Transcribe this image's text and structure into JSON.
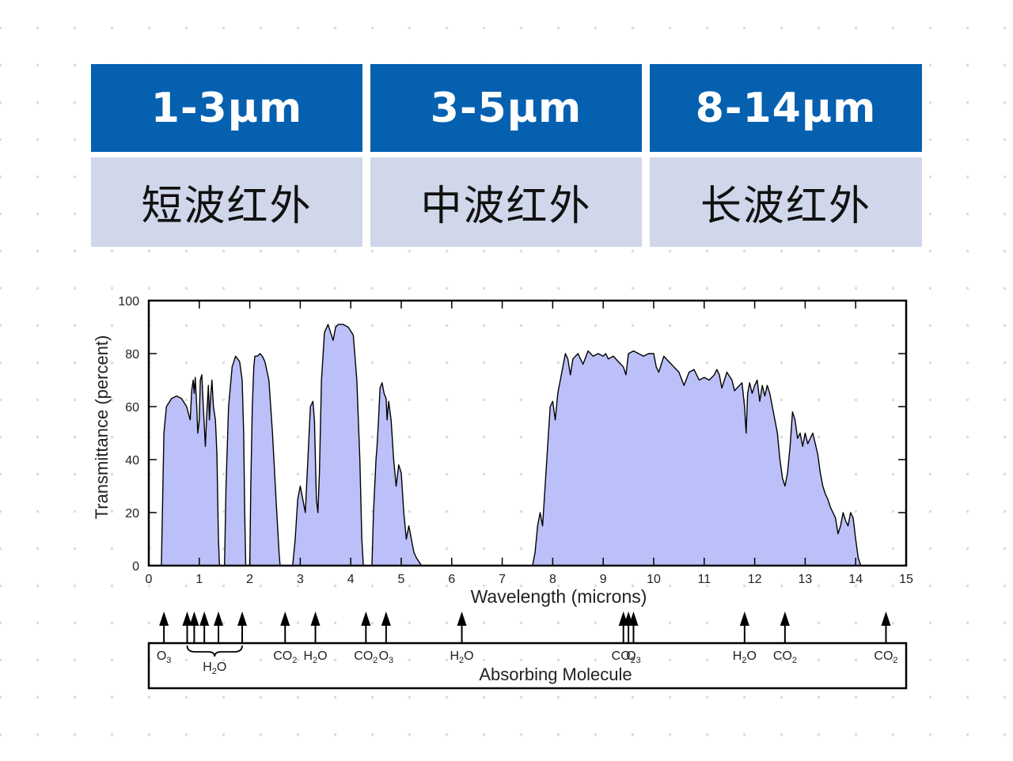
{
  "bands": [
    {
      "range": "1-3μm",
      "name": "短波红外"
    },
    {
      "range": "3-5μm",
      "name": "中波红外"
    },
    {
      "range": "8-14μm",
      "name": "长波红外"
    }
  ],
  "colors": {
    "header_blue": "#0560b0",
    "header_light": "#d0d7ea",
    "transmission_fill": "#bcc0f8",
    "line": "#000000"
  },
  "chart_data": {
    "type": "area",
    "xlabel": "Wavelength (microns)",
    "ylabel": "Transmittance (percent)",
    "xlim": [
      0,
      15
    ],
    "ylim": [
      0,
      100
    ],
    "xticks": [
      "0",
      "1",
      "2",
      "3",
      "4",
      "5",
      "6",
      "7",
      "8",
      "9",
      "10",
      "11",
      "12",
      "13",
      "14",
      "15"
    ],
    "yticks": [
      "0",
      "20",
      "40",
      "60",
      "80",
      "100"
    ],
    "grid": false,
    "series": [
      {
        "values": [
          [
            0.25,
            0
          ],
          [
            0.27,
            20
          ],
          [
            0.3,
            50
          ],
          [
            0.35,
            60
          ],
          [
            0.45,
            63
          ],
          [
            0.55,
            64
          ],
          [
            0.65,
            63
          ],
          [
            0.75,
            60
          ],
          [
            0.82,
            55
          ],
          [
            0.85,
            66
          ],
          [
            0.88,
            70
          ],
          [
            0.9,
            65
          ],
          [
            0.92,
            71
          ],
          [
            0.95,
            60
          ],
          [
            0.97,
            50
          ],
          [
            1.0,
            55
          ],
          [
            1.02,
            70
          ],
          [
            1.05,
            72
          ],
          [
            1.08,
            60
          ],
          [
            1.12,
            45
          ],
          [
            1.15,
            58
          ],
          [
            1.18,
            68
          ],
          [
            1.2,
            55
          ],
          [
            1.22,
            62
          ],
          [
            1.25,
            70
          ],
          [
            1.28,
            60
          ],
          [
            1.32,
            55
          ],
          [
            1.35,
            42
          ],
          [
            1.38,
            10
          ],
          [
            1.4,
            0
          ],
          [
            1.5,
            0
          ],
          [
            1.53,
            30
          ],
          [
            1.58,
            60
          ],
          [
            1.65,
            75
          ],
          [
            1.72,
            79
          ],
          [
            1.8,
            77
          ],
          [
            1.85,
            70
          ],
          [
            1.88,
            50
          ],
          [
            1.9,
            20
          ],
          [
            1.92,
            0
          ],
          [
            2.0,
            0
          ],
          [
            2.02,
            30
          ],
          [
            2.05,
            60
          ],
          [
            2.08,
            75
          ],
          [
            2.1,
            79
          ],
          [
            2.15,
            79
          ],
          [
            2.2,
            80
          ],
          [
            2.25,
            79
          ],
          [
            2.3,
            77
          ],
          [
            2.38,
            70
          ],
          [
            2.45,
            50
          ],
          [
            2.52,
            25
          ],
          [
            2.58,
            5
          ],
          [
            2.6,
            0
          ],
          [
            2.85,
            0
          ],
          [
            2.9,
            10
          ],
          [
            2.95,
            25
          ],
          [
            3.0,
            30
          ],
          [
            3.05,
            25
          ],
          [
            3.1,
            20
          ],
          [
            3.15,
            40
          ],
          [
            3.2,
            60
          ],
          [
            3.25,
            62
          ],
          [
            3.28,
            55
          ],
          [
            3.32,
            25
          ],
          [
            3.35,
            20
          ],
          [
            3.38,
            35
          ],
          [
            3.42,
            70
          ],
          [
            3.48,
            88
          ],
          [
            3.55,
            91
          ],
          [
            3.6,
            88
          ],
          [
            3.65,
            85
          ],
          [
            3.7,
            90
          ],
          [
            3.75,
            91
          ],
          [
            3.85,
            91
          ],
          [
            3.95,
            90
          ],
          [
            4.05,
            87
          ],
          [
            4.12,
            70
          ],
          [
            4.18,
            40
          ],
          [
            4.22,
            10
          ],
          [
            4.25,
            0
          ],
          [
            4.42,
            0
          ],
          [
            4.45,
            20
          ],
          [
            4.5,
            40
          ],
          [
            4.52,
            45
          ],
          [
            4.55,
            55
          ],
          [
            4.58,
            67
          ],
          [
            4.62,
            69
          ],
          [
            4.66,
            65
          ],
          [
            4.7,
            63
          ],
          [
            4.72,
            55
          ],
          [
            4.75,
            62
          ],
          [
            4.8,
            55
          ],
          [
            4.85,
            40
          ],
          [
            4.9,
            30
          ],
          [
            4.95,
            38
          ],
          [
            5.0,
            35
          ],
          [
            5.05,
            20
          ],
          [
            5.1,
            10
          ],
          [
            5.15,
            15
          ],
          [
            5.2,
            10
          ],
          [
            5.25,
            5
          ],
          [
            5.3,
            3
          ],
          [
            5.4,
            0
          ],
          [
            7.6,
            0
          ],
          [
            7.65,
            5
          ],
          [
            7.7,
            15
          ],
          [
            7.75,
            20
          ],
          [
            7.8,
            15
          ],
          [
            7.85,
            30
          ],
          [
            7.9,
            45
          ],
          [
            7.95,
            60
          ],
          [
            8.0,
            62
          ],
          [
            8.05,
            55
          ],
          [
            8.1,
            65
          ],
          [
            8.15,
            70
          ],
          [
            8.2,
            75
          ],
          [
            8.25,
            80
          ],
          [
            8.3,
            78
          ],
          [
            8.35,
            72
          ],
          [
            8.4,
            78
          ],
          [
            8.5,
            80
          ],
          [
            8.6,
            76
          ],
          [
            8.7,
            81
          ],
          [
            8.8,
            79
          ],
          [
            8.9,
            80
          ],
          [
            9.0,
            79
          ],
          [
            9.05,
            80
          ],
          [
            9.1,
            78
          ],
          [
            9.2,
            79
          ],
          [
            9.3,
            77
          ],
          [
            9.4,
            75
          ],
          [
            9.45,
            72
          ],
          [
            9.5,
            80
          ],
          [
            9.6,
            81
          ],
          [
            9.7,
            80
          ],
          [
            9.8,
            79
          ],
          [
            9.9,
            80
          ],
          [
            10.0,
            80
          ],
          [
            10.05,
            75
          ],
          [
            10.1,
            73
          ],
          [
            10.2,
            79
          ],
          [
            10.3,
            77
          ],
          [
            10.4,
            75
          ],
          [
            10.5,
            73
          ],
          [
            10.6,
            68
          ],
          [
            10.7,
            73
          ],
          [
            10.8,
            74
          ],
          [
            10.9,
            70
          ],
          [
            11.0,
            71
          ],
          [
            11.1,
            70
          ],
          [
            11.2,
            72
          ],
          [
            11.25,
            74
          ],
          [
            11.3,
            72
          ],
          [
            11.35,
            67
          ],
          [
            11.45,
            73
          ],
          [
            11.55,
            70
          ],
          [
            11.6,
            66
          ],
          [
            11.7,
            68
          ],
          [
            11.75,
            69
          ],
          [
            11.8,
            60
          ],
          [
            11.83,
            50
          ],
          [
            11.86,
            65
          ],
          [
            11.9,
            69
          ],
          [
            11.95,
            65
          ],
          [
            12.0,
            68
          ],
          [
            12.05,
            70
          ],
          [
            12.1,
            62
          ],
          [
            12.15,
            68
          ],
          [
            12.2,
            64
          ],
          [
            12.25,
            68
          ],
          [
            12.3,
            65
          ],
          [
            12.35,
            60
          ],
          [
            12.4,
            55
          ],
          [
            12.45,
            50
          ],
          [
            12.5,
            40
          ],
          [
            12.55,
            33
          ],
          [
            12.6,
            30
          ],
          [
            12.65,
            35
          ],
          [
            12.7,
            45
          ],
          [
            12.75,
            58
          ],
          [
            12.8,
            55
          ],
          [
            12.85,
            48
          ],
          [
            12.9,
            50
          ],
          [
            12.95,
            45
          ],
          [
            13.0,
            50
          ],
          [
            13.05,
            46
          ],
          [
            13.1,
            48
          ],
          [
            13.15,
            50
          ],
          [
            13.2,
            46
          ],
          [
            13.25,
            42
          ],
          [
            13.3,
            35
          ],
          [
            13.35,
            30
          ],
          [
            13.4,
            27
          ],
          [
            13.45,
            25
          ],
          [
            13.5,
            22
          ],
          [
            13.55,
            20
          ],
          [
            13.6,
            18
          ],
          [
            13.65,
            12
          ],
          [
            13.7,
            15
          ],
          [
            13.75,
            20
          ],
          [
            13.8,
            17
          ],
          [
            13.85,
            15
          ],
          [
            13.9,
            20
          ],
          [
            13.95,
            18
          ],
          [
            14.0,
            10
          ],
          [
            14.05,
            3
          ],
          [
            14.1,
            0
          ]
        ]
      }
    ],
    "absorbers": [
      {
        "x": 0.3,
        "label": "O3",
        "formula": [
          "O",
          "3"
        ]
      },
      {
        "x": 0.76,
        "label": ""
      },
      {
        "x": 0.9,
        "label": ""
      },
      {
        "x": 1.1,
        "label": ""
      },
      {
        "x": 1.38,
        "label": ""
      },
      {
        "x": 1.85,
        "label": ""
      },
      {
        "x": 2.7,
        "label": "CO2",
        "formula": [
          "CO",
          "2"
        ]
      },
      {
        "x": 3.3,
        "label": "H2O",
        "formula": [
          "H",
          "2",
          "O"
        ]
      },
      {
        "x": 4.3,
        "label": "CO2",
        "formula": [
          "CO",
          "2"
        ]
      },
      {
        "x": 4.7,
        "label": "O3",
        "formula": [
          "O",
          "3"
        ]
      },
      {
        "x": 6.2,
        "label": "H2O",
        "formula": [
          "H",
          "2",
          "O"
        ]
      },
      {
        "x": 9.4,
        "label": "CO2",
        "formula": [
          "CO",
          "2"
        ]
      },
      {
        "x": 9.5,
        "label": ""
      },
      {
        "x": 9.6,
        "label": "O3",
        "formula": [
          "O",
          "3"
        ]
      },
      {
        "x": 11.8,
        "label": "H2O",
        "formula": [
          "H",
          "2",
          "O"
        ]
      },
      {
        "x": 12.6,
        "label": "CO2",
        "formula": [
          "CO",
          "2"
        ]
      },
      {
        "x": 14.6,
        "label": "CO2",
        "formula": [
          "CO",
          "2"
        ]
      }
    ],
    "h2o_brace_label": "H2O",
    "h2o_brace_formula": [
      "H",
      "2",
      "O"
    ],
    "absorber_box_label": "Absorbing Molecule"
  }
}
